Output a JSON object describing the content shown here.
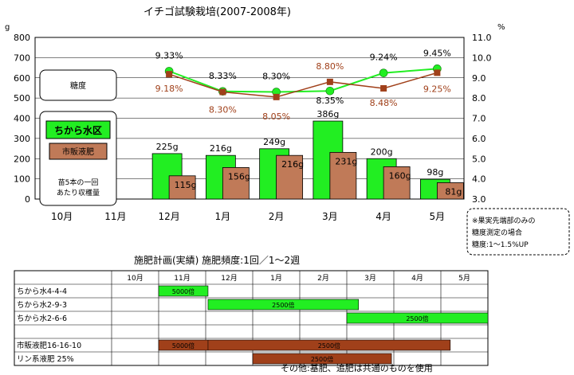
{
  "chart_data": [
    {
      "type": "bar+line",
      "title": "イチゴ試験栽培(2007-2008年)",
      "categories": [
        "10月",
        "11月",
        "12月",
        "1月",
        "2月",
        "3月",
        "4月",
        "5月"
      ],
      "y_left_unit": "g",
      "y_right_unit": "%",
      "y_left_ticks": [
        "0",
        "100",
        "200",
        "300",
        "400",
        "500",
        "600",
        "700",
        "800"
      ],
      "y_right_ticks": [
        "3.0",
        "4.0",
        "5.0",
        "6.0",
        "7.0",
        "8.0",
        "9.0",
        "10.0",
        "11.0"
      ],
      "ylim_left": [
        0,
        800
      ],
      "ylim_right": [
        3,
        11
      ],
      "series": [
        {
          "name": "ちから水区",
          "kind": "bar",
          "color": "#22ee22",
          "values": [
            null,
            null,
            225,
            216,
            249,
            386,
            200,
            98
          ],
          "labels": [
            "",
            "",
            "225g",
            "216g",
            "249g",
            "386g",
            "200g",
            "98g"
          ]
        },
        {
          "name": "市販液肥",
          "kind": "bar",
          "color": "#c07a58",
          "values": [
            null,
            null,
            115,
            156,
            216,
            231,
            160,
            81
          ],
          "labels": [
            "",
            "",
            "115g",
            "156g",
            "216g",
            "231g",
            "160g",
            "81g"
          ]
        },
        {
          "name": "糖度 ちから水区",
          "kind": "line",
          "color": "#22ee22",
          "axis": "right",
          "values": [
            null,
            null,
            9.33,
            8.33,
            8.3,
            8.35,
            9.24,
            9.45
          ],
          "labels": [
            "",
            "",
            "9.33%",
            "8.33%",
            "8.30%",
            "8.35%",
            "9.24%",
            "9.45%"
          ]
        },
        {
          "name": "糖度 市販液肥",
          "kind": "line",
          "color": "#a0401a",
          "axis": "right",
          "values": [
            null,
            null,
            9.18,
            8.3,
            8.05,
            8.8,
            8.48,
            9.25
          ],
          "labels": [
            "",
            "",
            "9.18%",
            "8.30%",
            "8.05%",
            "8.80%",
            "8.48%",
            "9.25%"
          ]
        }
      ],
      "legend": {
        "sugar": "糖度",
        "green": "ちから水区",
        "brown": "市販液肥",
        "harvest_line1": "苗5本の一回",
        "harvest_line2": "あたり収穫量"
      },
      "note_lines": [
        "※果実先端部のみの",
        "糖度測定の場合",
        "糖度:1～1.5%UP"
      ]
    },
    {
      "type": "gantt",
      "title": "施肥計画(実績)  施肥頻度:1回／1～2週",
      "months": [
        "10月",
        "11月",
        "12月",
        "1月",
        "2月",
        "3月",
        "4月",
        "5月"
      ],
      "rows": [
        {
          "label": "ちから水4-4-4",
          "color": "#22ee22",
          "start": 1.0,
          "end": 2.05,
          "text": "5000倍"
        },
        {
          "label": "ちから水2-9-3",
          "color": "#22ee22",
          "start": 2.05,
          "end": 5.25,
          "text": "2500倍"
        },
        {
          "label": "ちから水2-6-6",
          "color": "#22ee22",
          "start": 5.0,
          "end": 8.0,
          "text": "2500倍"
        },
        {
          "label": "",
          "color": "",
          "start": null,
          "end": null,
          "text": ""
        },
        {
          "label": "市販液肥16-16-10",
          "color": "#a0401a",
          "start": 1.0,
          "end": 7.2,
          "text": "2500倍",
          "sub_text": "5000倍",
          "sub_end": 2.05
        },
        {
          "label": "リン系液肥 25%",
          "color": "#a0401a",
          "start": 3.0,
          "end": 5.95,
          "text": "2500倍"
        }
      ],
      "footer": "その他:基肥、追肥は共通のものを使用"
    }
  ]
}
